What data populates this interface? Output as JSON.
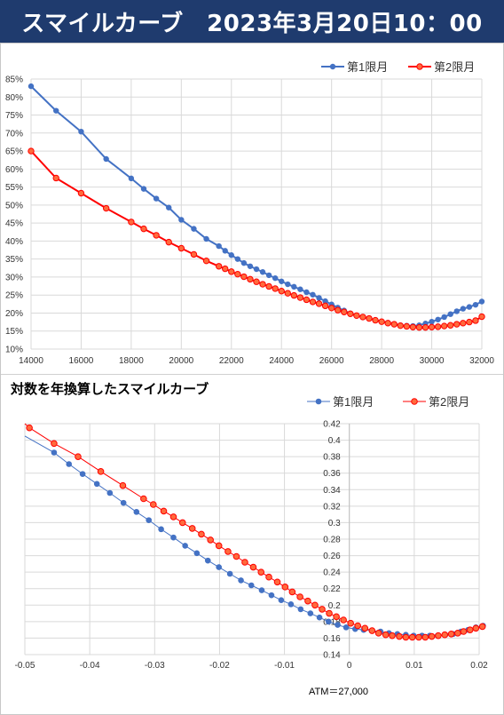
{
  "page_title": "スマイルカーブ　2023年3月20日10：00",
  "chart_data": [
    {
      "type": "line",
      "title": "",
      "xlabel": "",
      "ylabel": "",
      "xlim": [
        14000,
        32000
      ],
      "ylim": [
        10,
        85
      ],
      "x_ticks": [
        "14000",
        "16000",
        "18000",
        "20000",
        "22000",
        "24000",
        "26000",
        "28000",
        "30000",
        "32000"
      ],
      "y_ticks": [
        "10%",
        "15%",
        "20%",
        "25%",
        "30%",
        "35%",
        "40%",
        "45%",
        "50%",
        "55%",
        "60%",
        "65%",
        "70%",
        "75%",
        "80%",
        "85%"
      ],
      "grid": true,
      "legend_position": "top-right",
      "series": [
        {
          "name": "第1限月",
          "color": "#4472c4",
          "points": [
            [
              14000,
              83
            ],
            [
              15000,
              76.2
            ],
            [
              16000,
              70.4
            ],
            [
              17000,
              62.8
            ],
            [
              18000,
              57.4
            ],
            [
              18500,
              54.5
            ],
            [
              19000,
              51.8
            ],
            [
              19500,
              49.3
            ],
            [
              20000,
              45.9
            ],
            [
              20500,
              43.4
            ],
            [
              21000,
              40.6
            ],
            [
              21500,
              38.6
            ],
            [
              21750,
              37.3
            ],
            [
              22000,
              36.1
            ],
            [
              22250,
              35
            ],
            [
              22500,
              33.9
            ],
            [
              22750,
              33
            ],
            [
              23000,
              32.2
            ],
            [
              23250,
              31.4
            ],
            [
              23500,
              30.5
            ],
            [
              23750,
              29.7
            ],
            [
              24000,
              28.8
            ],
            [
              24250,
              28
            ],
            [
              24500,
              27.3
            ],
            [
              24750,
              26.6
            ],
            [
              25000,
              25.8
            ],
            [
              25250,
              25.1
            ],
            [
              25500,
              24.2
            ],
            [
              25750,
              23.3
            ],
            [
              26000,
              22.4
            ],
            [
              26250,
              21.5
            ],
            [
              26500,
              20.7
            ],
            [
              26750,
              19.9
            ],
            [
              27000,
              19.3
            ],
            [
              27250,
              18.9
            ],
            [
              27500,
              18.5
            ],
            [
              27750,
              18.1
            ],
            [
              28000,
              17.6
            ],
            [
              28250,
              17.3
            ],
            [
              28500,
              16.9
            ],
            [
              28750,
              16.6
            ],
            [
              29000,
              16.5
            ],
            [
              29250,
              16.4
            ],
            [
              29500,
              16.6
            ],
            [
              29750,
              17.1
            ],
            [
              30000,
              17.6
            ],
            [
              30250,
              18.2
            ],
            [
              30500,
              18.9
            ],
            [
              30750,
              19.7
            ],
            [
              31000,
              20.5
            ],
            [
              31250,
              21.2
            ],
            [
              31500,
              21.7
            ],
            [
              31750,
              22.3
            ],
            [
              32000,
              23.2
            ]
          ]
        },
        {
          "name": "第2限月",
          "color": "#ff0000",
          "points": [
            [
              14000,
              65
            ],
            [
              15000,
              57.5
            ],
            [
              16000,
              53.3
            ],
            [
              17000,
              49.1
            ],
            [
              18000,
              45.3
            ],
            [
              18500,
              43.4
            ],
            [
              19000,
              41.6
            ],
            [
              19500,
              39.7
            ],
            [
              20000,
              38
            ],
            [
              20500,
              36.3
            ],
            [
              21000,
              34.5
            ],
            [
              21500,
              33
            ],
            [
              21750,
              32.3
            ],
            [
              22000,
              31.5
            ],
            [
              22250,
              30.8
            ],
            [
              22500,
              30.1
            ],
            [
              22750,
              29.4
            ],
            [
              23000,
              28.7
            ],
            [
              23250,
              28
            ],
            [
              23500,
              27.4
            ],
            [
              23750,
              26.8
            ],
            [
              24000,
              26.1
            ],
            [
              24250,
              25.5
            ],
            [
              24500,
              24.9
            ],
            [
              24750,
              24.3
            ],
            [
              25000,
              23.7
            ],
            [
              25250,
              23.1
            ],
            [
              25500,
              22.6
            ],
            [
              25750,
              22
            ],
            [
              26000,
              21.4
            ],
            [
              26250,
              20.8
            ],
            [
              26500,
              20.3
            ],
            [
              26750,
              19.8
            ],
            [
              27000,
              19.3
            ],
            [
              27250,
              18.9
            ],
            [
              27500,
              18.5
            ],
            [
              27750,
              18
            ],
            [
              28000,
              17.6
            ],
            [
              28250,
              17.2
            ],
            [
              28500,
              16.9
            ],
            [
              28750,
              16.5
            ],
            [
              29000,
              16.3
            ],
            [
              29250,
              16.1
            ],
            [
              29500,
              16
            ],
            [
              29750,
              16
            ],
            [
              30000,
              16.1
            ],
            [
              30250,
              16.2
            ],
            [
              30500,
              16.4
            ],
            [
              30750,
              16.6
            ],
            [
              31000,
              16.9
            ],
            [
              31250,
              17.2
            ],
            [
              31500,
              17.5
            ],
            [
              31750,
              17.9
            ],
            [
              32000,
              19
            ]
          ]
        }
      ]
    },
    {
      "type": "line",
      "title": "対数を年換算したスマイルカーブ",
      "xlabel": "",
      "ylabel": "",
      "xlim": [
        -0.05,
        0.02
      ],
      "ylim": [
        0.14,
        0.42
      ],
      "x_ticks": [
        "-0.05",
        "-0.04",
        "-0.03",
        "-0.02",
        "-0.01",
        "0",
        "0.01",
        "0.02"
      ],
      "y_ticks": [
        "0.14",
        "0.16",
        "0.18",
        "0.2",
        "0.22",
        "0.24",
        "0.26",
        "0.28",
        "0.3",
        "0.32",
        "0.34",
        "0.36",
        "0.38",
        "0.4",
        "0.42"
      ],
      "grid": true,
      "legend_position": "top-right",
      "annotation": "ATM＝27,000",
      "series": [
        {
          "name": "第1限月",
          "color": "#4472c4",
          "line_start": [
            -0.05,
            0.405
          ],
          "points": [
            [
              -0.0455,
              0.385
            ],
            [
              -0.0432,
              0.371
            ],
            [
              -0.0411,
              0.359
            ],
            [
              -0.0389,
              0.347
            ],
            [
              -0.0369,
              0.336
            ],
            [
              -0.0348,
              0.324
            ],
            [
              -0.0328,
              0.313
            ],
            [
              -0.0309,
              0.303
            ],
            [
              -0.029,
              0.292
            ],
            [
              -0.0271,
              0.282
            ],
            [
              -0.0253,
              0.272
            ],
            [
              -0.0235,
              0.263
            ],
            [
              -0.0218,
              0.254
            ],
            [
              -0.0201,
              0.246
            ],
            [
              -0.0184,
              0.238
            ],
            [
              -0.0167,
              0.23
            ],
            [
              -0.0151,
              0.224
            ],
            [
              -0.0135,
              0.218
            ],
            [
              -0.012,
              0.212
            ],
            [
              -0.0105,
              0.206
            ],
            [
              -0.009,
              0.201
            ],
            [
              -0.0075,
              0.195
            ],
            [
              -0.006,
              0.19
            ],
            [
              -0.0046,
              0.185
            ],
            [
              -0.0032,
              0.18
            ],
            [
              -0.0018,
              0.176
            ],
            [
              -0.0005,
              0.173
            ],
            [
              0.0009,
              0.171
            ],
            [
              0.0022,
              0.17
            ],
            [
              0.0035,
              0.169
            ],
            [
              0.0048,
              0.168
            ],
            [
              0.0061,
              0.166
            ],
            [
              0.0074,
              0.165
            ],
            [
              0.0087,
              0.164
            ],
            [
              0.0099,
              0.163
            ],
            [
              0.0112,
              0.163
            ],
            [
              0.0124,
              0.163
            ],
            [
              0.0136,
              0.163
            ],
            [
              0.0148,
              0.164
            ],
            [
              0.016,
              0.165
            ],
            [
              0.0172,
              0.168
            ],
            [
              0.0183,
              0.17
            ],
            [
              0.0195,
              0.173
            ],
            [
              0.0206,
              0.175
            ]
          ]
        },
        {
          "name": "第2限月",
          "color": "#ff0000",
          "line_start": [
            -0.05,
            0.42
          ],
          "points": [
            [
              -0.0493,
              0.415
            ],
            [
              -0.0455,
              0.396
            ],
            [
              -0.0418,
              0.38
            ],
            [
              -0.0383,
              0.362
            ],
            [
              -0.0349,
              0.345
            ],
            [
              -0.0317,
              0.329
            ],
            [
              -0.0302,
              0.322
            ],
            [
              -0.0286,
              0.314
            ],
            [
              -0.0271,
              0.307
            ],
            [
              -0.0257,
              0.3
            ],
            [
              -0.0242,
              0.293
            ],
            [
              -0.0228,
              0.286
            ],
            [
              -0.0214,
              0.279
            ],
            [
              -0.0201,
              0.272
            ],
            [
              -0.0187,
              0.265
            ],
            [
              -0.0174,
              0.259
            ],
            [
              -0.0161,
              0.252
            ],
            [
              -0.0148,
              0.246
            ],
            [
              -0.0136,
              0.24
            ],
            [
              -0.0124,
              0.234
            ],
            [
              -0.0111,
              0.228
            ],
            [
              -0.0099,
              0.222
            ],
            [
              -0.0088,
              0.216
            ],
            [
              -0.0076,
              0.21
            ],
            [
              -0.0064,
              0.205
            ],
            [
              -0.0053,
              0.2
            ],
            [
              -0.0042,
              0.195
            ],
            [
              -0.0031,
              0.19
            ],
            [
              -0.002,
              0.186
            ],
            [
              -0.0009,
              0.182
            ],
            [
              0.0002,
              0.178
            ],
            [
              0.0013,
              0.175
            ],
            [
              0.0024,
              0.172
            ],
            [
              0.0035,
              0.169
            ],
            [
              0.0045,
              0.166
            ],
            [
              0.0056,
              0.164
            ],
            [
              0.0066,
              0.163
            ],
            [
              0.0077,
              0.162
            ],
            [
              0.0087,
              0.161
            ],
            [
              0.0097,
              0.161
            ],
            [
              0.0107,
              0.161
            ],
            [
              0.0117,
              0.161
            ],
            [
              0.0127,
              0.162
            ],
            [
              0.0137,
              0.163
            ],
            [
              0.0147,
              0.164
            ],
            [
              0.0157,
              0.165
            ],
            [
              0.0167,
              0.166
            ],
            [
              0.0176,
              0.168
            ],
            [
              0.0186,
              0.17
            ],
            [
              0.0195,
              0.172
            ],
            [
              0.0205,
              0.174
            ]
          ]
        }
      ]
    }
  ]
}
